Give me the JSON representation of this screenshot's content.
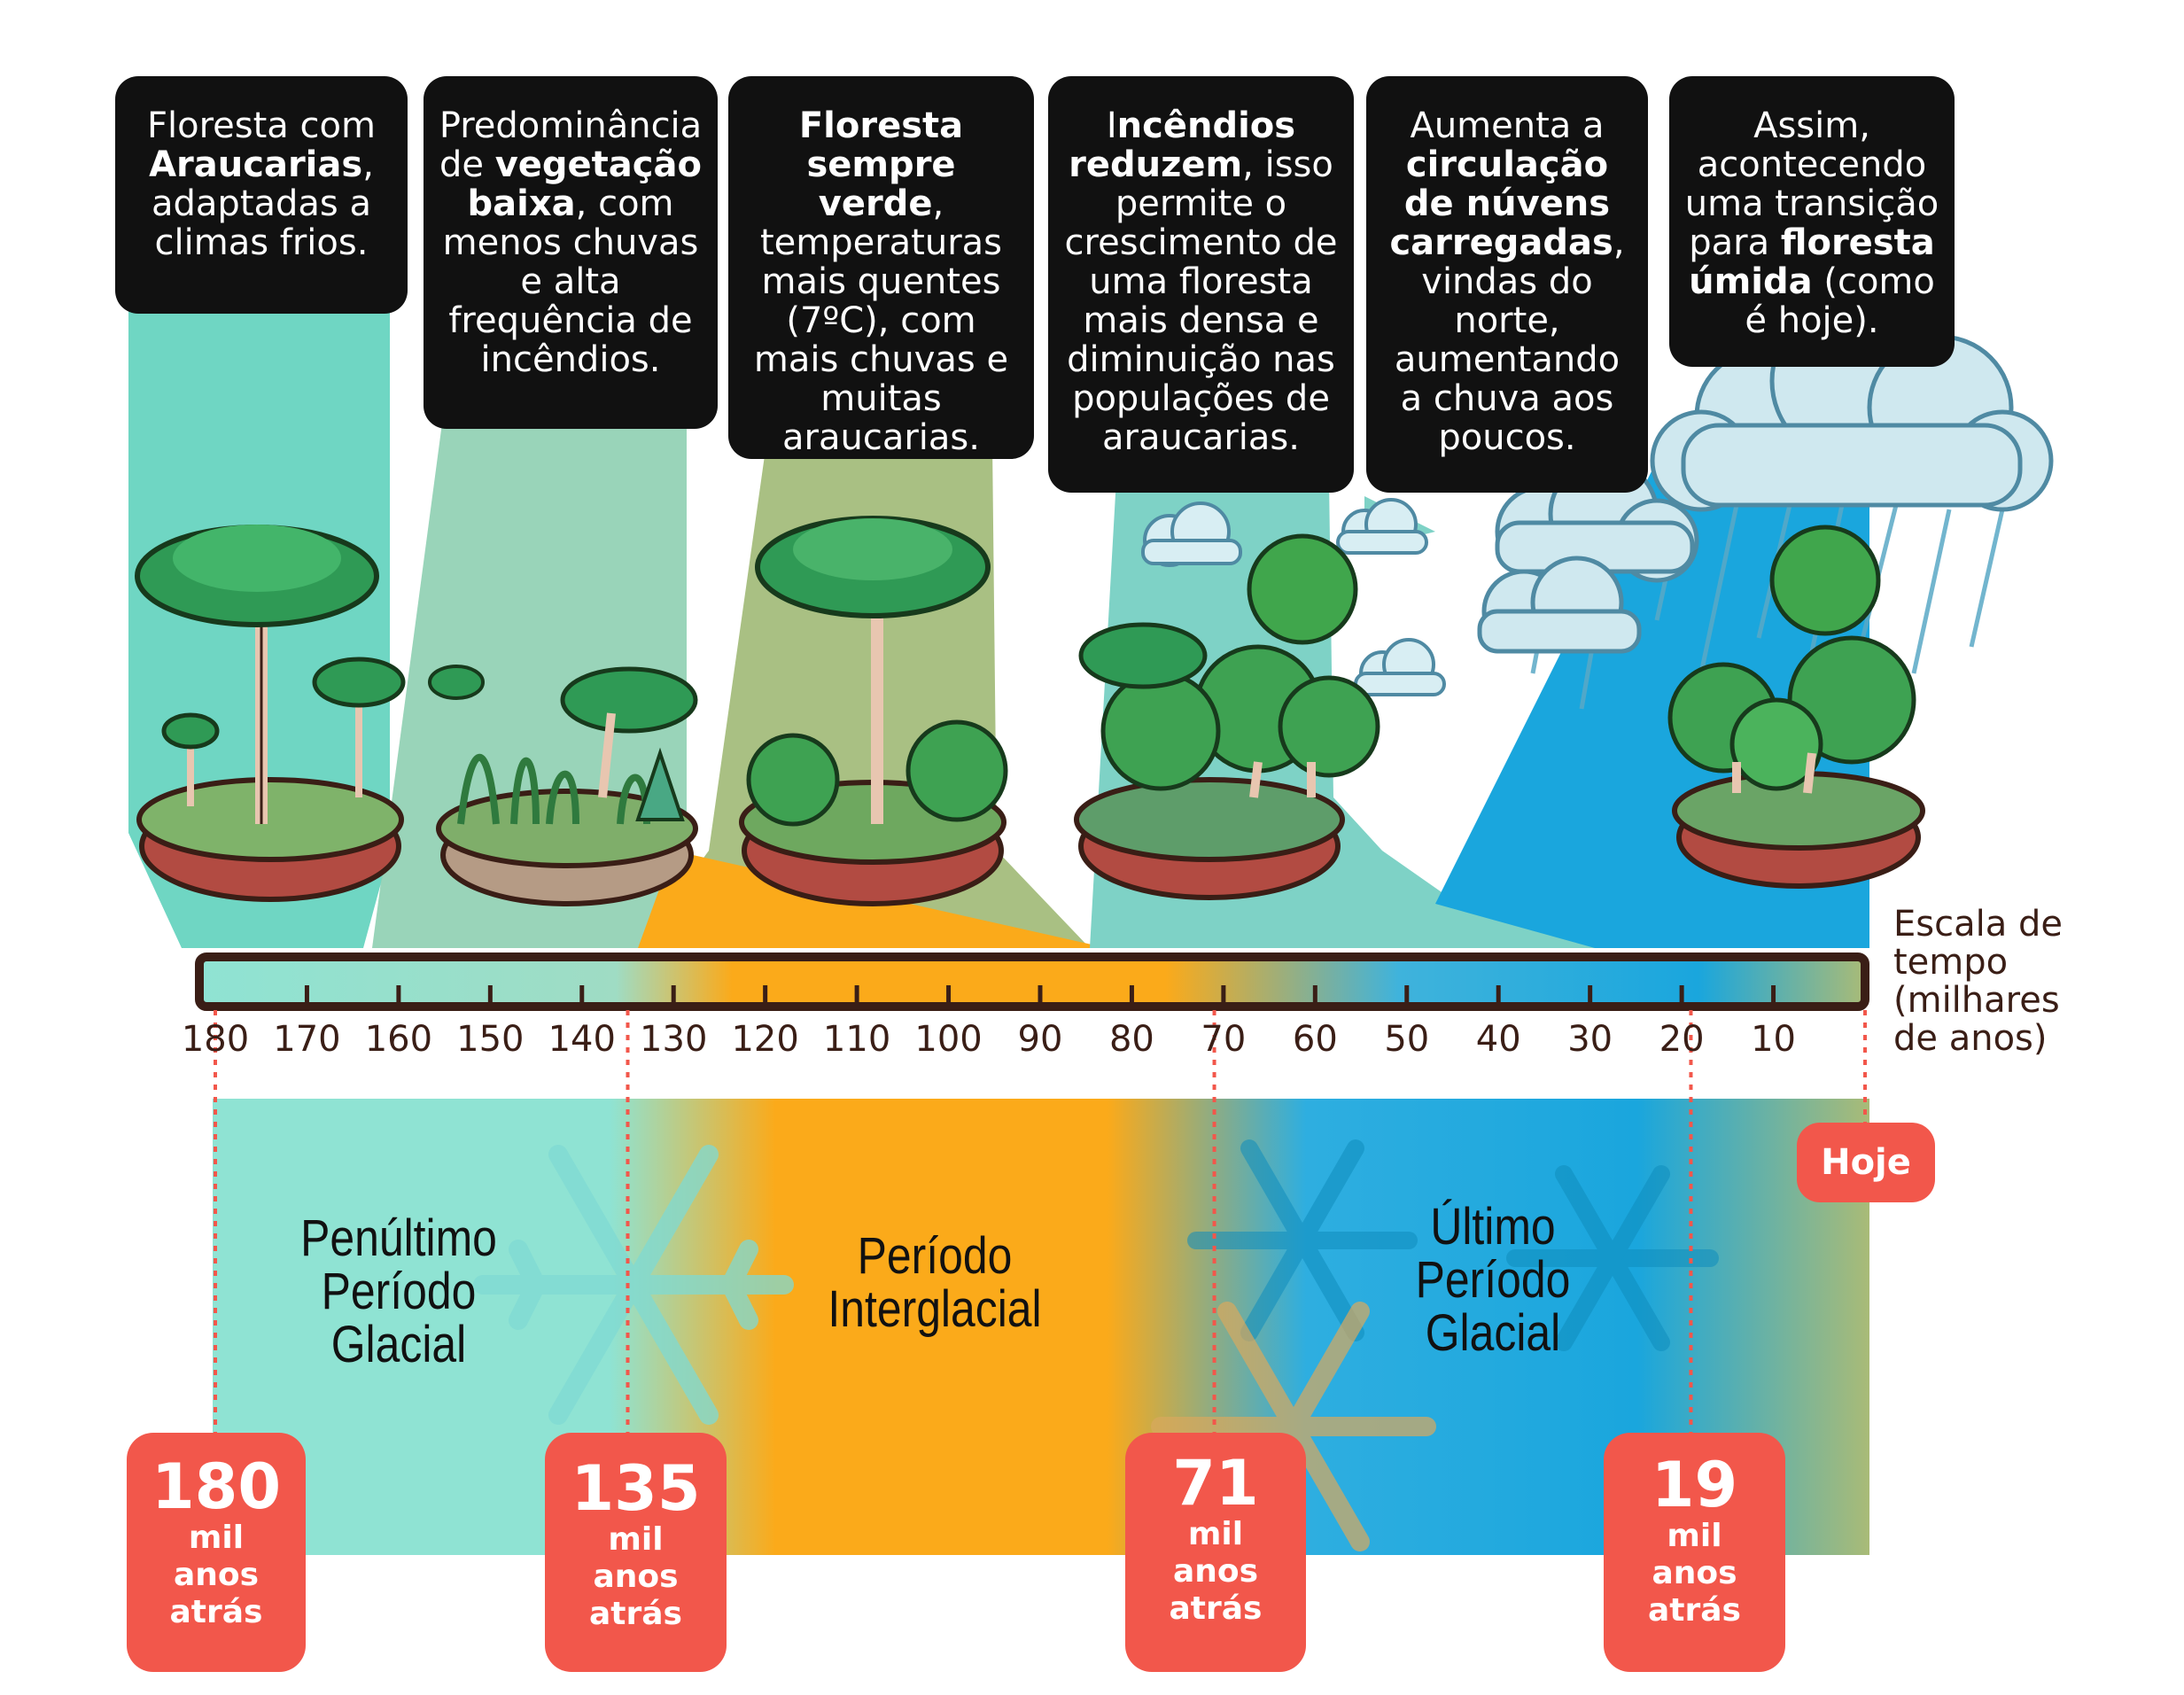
{
  "cards": [
    {
      "pre": "Floresta com ",
      "b1": "Araucarias",
      "mid": ", adaptadas a climas frios.",
      "b2": "",
      "post": ""
    },
    {
      "pre": "Predominância de ",
      "b1": "vegetação baixa",
      "mid": ", com menos chuvas e alta frequência de incêndios.",
      "b2": "",
      "post": ""
    },
    {
      "pre": "",
      "b1": "Floresta sempre verde",
      "mid": ", temperaturas mais quentes (7ºC), com mais chuvas e muitas araucarias.",
      "b2": "",
      "post": ""
    },
    {
      "pre": "I",
      "b1": "ncêndios reduzem",
      "mid": ", isso permite o crescimento de uma floresta mais densa e diminuição nas populações de araucarias.",
      "b2": "",
      "post": ""
    },
    {
      "pre": "Aumenta a ",
      "b1": "circulação de núvens carregadas",
      "mid": ", vindas do norte, aumentando a chuva aos poucos.",
      "b2": "",
      "post": ""
    },
    {
      "pre": "Assim, acontecendo uma transição para ",
      "b1": "floresta úmida",
      "mid": " (como é hoje).",
      "b2": "",
      "post": ""
    }
  ],
  "scale": {
    "label_lines": [
      "Escala de",
      "tempo",
      "(milhares",
      "de anos)"
    ],
    "ticks": [
      "180",
      "170",
      "160",
      "150",
      "140",
      "130",
      "120",
      "110",
      "100",
      "90",
      "80",
      "70",
      "60",
      "50",
      "40",
      "30",
      "20",
      "10"
    ],
    "min": 0,
    "max": 180
  },
  "periods": [
    {
      "lines": [
        "Penúltimo",
        "Período",
        "Glacial"
      ]
    },
    {
      "lines": [
        "Período",
        "Interglacial"
      ]
    },
    {
      "lines": [
        "Último",
        "Período",
        "Glacial"
      ]
    }
  ],
  "markers": [
    {
      "value": 180,
      "num": "180",
      "l1": "mil",
      "l2": "anos",
      "l3": "atrás"
    },
    {
      "value": 135,
      "num": "135",
      "l1": "mil",
      "l2": "anos",
      "l3": "atrás"
    },
    {
      "value": 71,
      "num": "71",
      "l1": "mil",
      "l2": "anos",
      "l3": "atrás"
    },
    {
      "value": 19,
      "num": "19",
      "l1": "mil",
      "l2": "anos",
      "l3": "atrás"
    }
  ],
  "today_label": "Hoje",
  "colors": {
    "glacial_teal": "#8fe3d3",
    "interglacial_orange": "#fbaa1a",
    "last_glacial_blue": "#1aa6dd",
    "today_olive": "#a9bb77",
    "badge_red": "#f2574b",
    "card_black": "#111111",
    "bar_outline": "#3a1e16"
  },
  "icons": [
    "araucaria-tree-icon",
    "low-vegetation-icon",
    "evergreen-forest-icon",
    "dense-forest-icon",
    "rain-cloud-icon",
    "humid-forest-icon",
    "snowflake-icon"
  ]
}
